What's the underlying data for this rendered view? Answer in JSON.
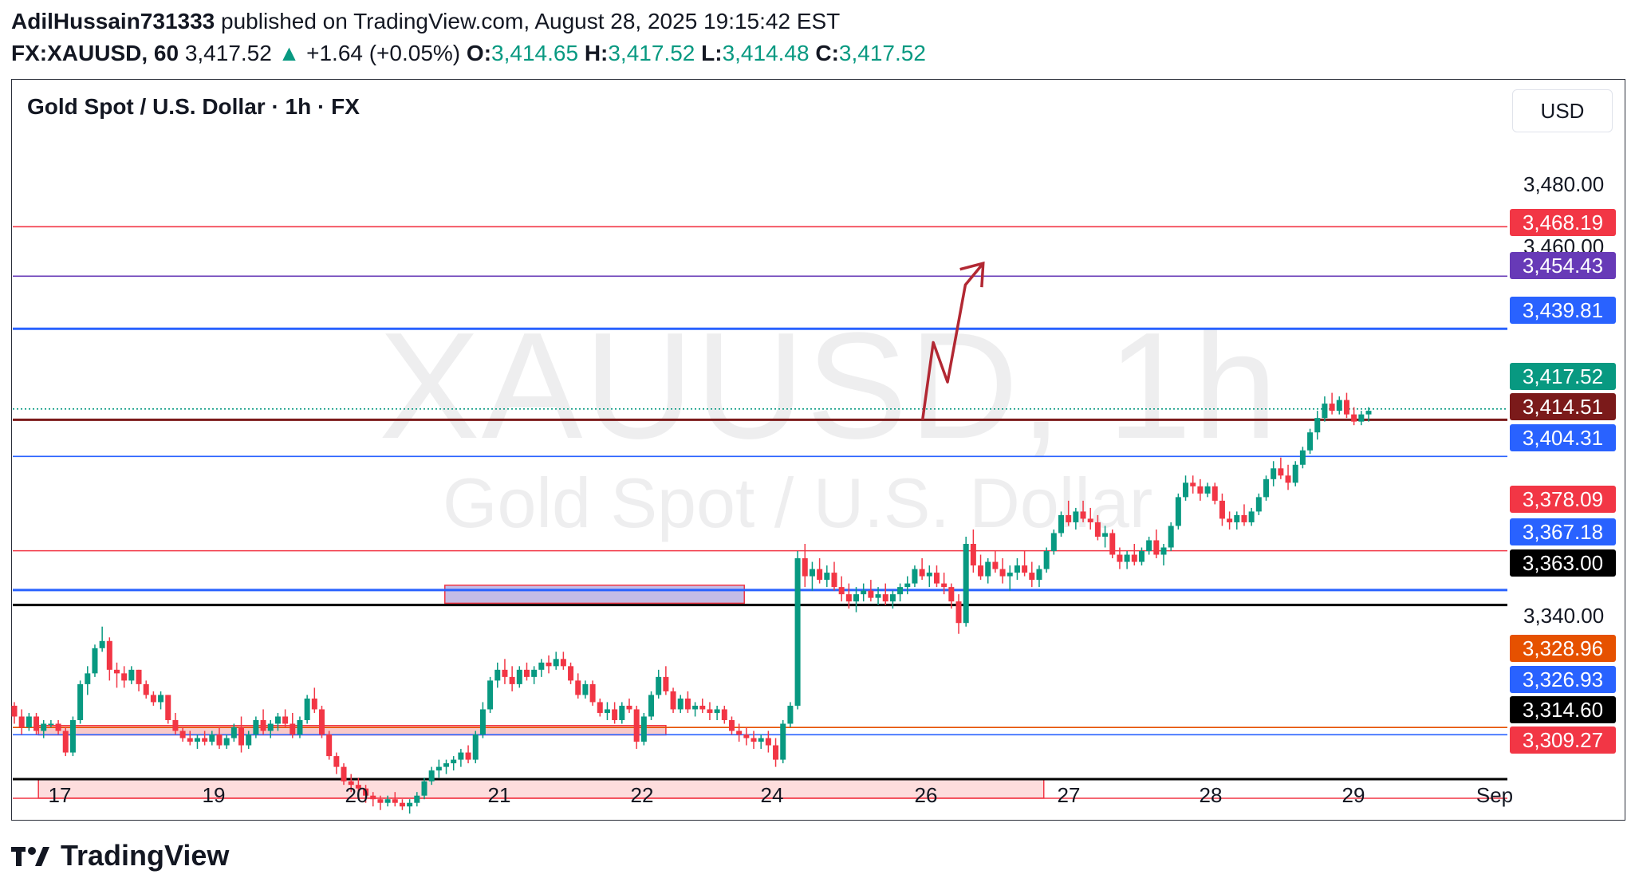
{
  "header": {
    "author": "AdilHussain731333",
    "published_text": " published on TradingView.com, August 28, 2025 19:15:42 EST",
    "symbol": "FX:XAUUSD, 60",
    "last_price": "3,417.52",
    "change_arrow": "▲",
    "change": "+1.64 (+0.05%)",
    "o_label": "O:",
    "o_value": "3,414.65",
    "h_label": "H:",
    "h_value": "3,417.52",
    "l_label": "L:",
    "l_value": "3,414.48",
    "c_label": "C:",
    "c_value": "3,417.52"
  },
  "chart_title": "Gold Spot / U.S. Dollar · 1h · FX",
  "currency_button": "USD",
  "watermark": {
    "line1": "XAUUSD, 1h",
    "line2": "Gold Spot / U.S. Dollar"
  },
  "footer": {
    "brand": "TradingView"
  },
  "colors": {
    "up": "#089981",
    "down": "#f23645",
    "red": "#f23645",
    "blue": "#2962ff",
    "purple": "#673ab7",
    "maroon": "#880e4f",
    "black": "#000000",
    "orange": "#e65100",
    "arrow": "#b22833"
  },
  "chart_data": {
    "type": "candlestick",
    "title": "Gold Spot / U.S. Dollar · 1h · FX",
    "y_ticks": [
      "3,480.00",
      "3,460.00",
      "3,340.00"
    ],
    "x_ticks": [
      "17",
      "19",
      "20",
      "21",
      "22",
      "24",
      "26",
      "27",
      "28",
      "29",
      "Sep"
    ],
    "price_levels": [
      {
        "value": 3468.19,
        "label": "3,468.19",
        "color": "#f23645"
      },
      {
        "value": 3454.43,
        "label": "3,454.43",
        "color": "#673ab7"
      },
      {
        "value": 3439.81,
        "label": "3,439.81",
        "color": "#2962ff"
      },
      {
        "value": 3417.52,
        "label": "3,417.52",
        "color": "#089981",
        "style": "dotted"
      },
      {
        "value": 3414.51,
        "label": "3,414.51",
        "color": "#7b1a1a"
      },
      {
        "value": 3404.31,
        "label": "3,404.31",
        "color": "#2962ff"
      },
      {
        "value": 3378.09,
        "label": "3,378.09",
        "color": "#f23645"
      },
      {
        "value": 3367.18,
        "label": "3,367.18",
        "color": "#2962ff"
      },
      {
        "value": 3363.0,
        "label": "3,363.00",
        "color": "#000000"
      },
      {
        "value": 3328.96,
        "label": "3,328.96",
        "color": "#e65100"
      },
      {
        "value": 3326.93,
        "label": "3,326.93",
        "color": "#2962ff"
      },
      {
        "value": 3314.6,
        "label": "3,314.60",
        "color": "#000000"
      },
      {
        "value": 3309.27,
        "label": "3,309.27",
        "color": "#f23645"
      }
    ],
    "zones": [
      {
        "from": 3363.5,
        "to": 3368.5,
        "start_day": 22.4,
        "end_day": 26.6,
        "color": "#9c8fd6"
      },
      {
        "from": 3326.9,
        "to": 3329.5,
        "start_day": 16.7,
        "end_day": 25.5,
        "color": "#f4a6a6"
      },
      {
        "from": 3309.3,
        "to": 3314.6,
        "start_day": 16.7,
        "end_day": 30.8,
        "color": "#fbc7c7"
      }
    ],
    "projection": [
      {
        "day": 29.1,
        "value": 3414.5
      },
      {
        "day": 29.25,
        "value": 3436
      },
      {
        "day": 29.45,
        "value": 3425
      },
      {
        "day": 29.7,
        "value": 3452
      },
      {
        "day": 29.95,
        "value": 3458
      }
    ],
    "candles": [
      [
        3335,
        3336,
        3330,
        3332
      ],
      [
        3332,
        3334,
        3327,
        3329
      ],
      [
        3329,
        3333,
        3328,
        3332
      ],
      [
        3332,
        3333,
        3327,
        3328
      ],
      [
        3328,
        3331,
        3326,
        3330
      ],
      [
        3330,
        3331,
        3329,
        3330
      ],
      [
        3330,
        3331,
        3327,
        3328
      ],
      [
        3328,
        3329,
        3321,
        3322
      ],
      [
        3322,
        3332,
        3321,
        3331
      ],
      [
        3331,
        3342,
        3330,
        3341
      ],
      [
        3341,
        3346,
        3338,
        3344
      ],
      [
        3344,
        3352,
        3343,
        3351
      ],
      [
        3351,
        3357,
        3350,
        3353
      ],
      [
        3353,
        3354,
        3342,
        3345
      ],
      [
        3345,
        3347,
        3340,
        3344
      ],
      [
        3344,
        3346,
        3340,
        3342
      ],
      [
        3342,
        3346,
        3341,
        3345
      ],
      [
        3345,
        3345,
        3339,
        3341
      ],
      [
        3341,
        3342,
        3337,
        3338
      ],
      [
        3338,
        3339,
        3335,
        3336
      ],
      [
        3336,
        3339,
        3334,
        3338
      ],
      [
        3338,
        3338,
        3330,
        3331
      ],
      [
        3331,
        3333,
        3327,
        3328
      ],
      [
        3328,
        3329,
        3325,
        3326
      ],
      [
        3326,
        3328,
        3324,
        3325
      ],
      [
        3325,
        3327,
        3323,
        3326
      ],
      [
        3326,
        3328,
        3324,
        3325
      ],
      [
        3325,
        3328,
        3324,
        3327
      ],
      [
        3327,
        3329,
        3323,
        3324
      ],
      [
        3324,
        3327,
        3323,
        3326
      ],
      [
        3326,
        3330,
        3325,
        3329
      ],
      [
        3329,
        3332,
        3322,
        3324
      ],
      [
        3324,
        3328,
        3323,
        3327
      ],
      [
        3327,
        3332,
        3326,
        3331
      ],
      [
        3331,
        3334,
        3327,
        3328
      ],
      [
        3328,
        3331,
        3326,
        3330
      ],
      [
        3330,
        3333,
        3328,
        3332
      ],
      [
        3332,
        3334,
        3329,
        3330
      ],
      [
        3330,
        3333,
        3326,
        3327
      ],
      [
        3327,
        3332,
        3326,
        3331
      ],
      [
        3331,
        3338,
        3330,
        3337
      ],
      [
        3337,
        3340,
        3333,
        3334
      ],
      [
        3334,
        3335,
        3326,
        3327
      ],
      [
        3327,
        3328,
        3320,
        3321
      ],
      [
        3321,
        3322,
        3316,
        3318
      ],
      [
        3318,
        3319,
        3313,
        3314
      ],
      [
        3314,
        3316,
        3311,
        3313
      ],
      [
        3313,
        3315,
        3310,
        3312
      ],
      [
        3312,
        3313,
        3308,
        3310
      ],
      [
        3310,
        3311,
        3307,
        3309
      ],
      [
        3309,
        3310,
        3306,
        3308
      ],
      [
        3308,
        3310,
        3307,
        3309
      ],
      [
        3309,
        3311,
        3307,
        3308
      ],
      [
        3308,
        3309,
        3306,
        3307
      ],
      [
        3307,
        3309,
        3305,
        3308
      ],
      [
        3308,
        3311,
        3307,
        3310
      ],
      [
        3310,
        3315,
        3309,
        3314
      ],
      [
        3314,
        3318,
        3313,
        3317
      ],
      [
        3317,
        3320,
        3315,
        3318
      ],
      [
        3318,
        3320,
        3316,
        3319
      ],
      [
        3319,
        3321,
        3317,
        3320
      ],
      [
        3320,
        3323,
        3318,
        3322
      ],
      [
        3322,
        3324,
        3319,
        3320
      ],
      [
        3320,
        3328,
        3319,
        3327
      ],
      [
        3327,
        3336,
        3326,
        3334
      ],
      [
        3334,
        3343,
        3333,
        3342
      ],
      [
        3342,
        3347,
        3340,
        3345
      ],
      [
        3345,
        3348,
        3341,
        3343
      ],
      [
        3343,
        3346,
        3339,
        3341
      ],
      [
        3341,
        3346,
        3340,
        3345
      ],
      [
        3345,
        3347,
        3342,
        3343
      ],
      [
        3343,
        3346,
        3341,
        3345
      ],
      [
        3345,
        3348,
        3343,
        3347
      ],
      [
        3347,
        3349,
        3344,
        3346
      ],
      [
        3346,
        3350,
        3345,
        3348
      ],
      [
        3348,
        3350,
        3345,
        3346
      ],
      [
        3346,
        3347,
        3341,
        3342
      ],
      [
        3342,
        3344,
        3337,
        3338
      ],
      [
        3338,
        3342,
        3337,
        3341
      ],
      [
        3341,
        3342,
        3335,
        3336
      ],
      [
        3336,
        3337,
        3332,
        3333
      ],
      [
        3333,
        3336,
        3331,
        3334
      ],
      [
        3334,
        3336,
        3330,
        3331
      ],
      [
        3331,
        3336,
        3330,
        3335
      ],
      [
        3335,
        3337,
        3333,
        3334
      ],
      [
        3334,
        3335,
        3323,
        3325
      ],
      [
        3325,
        3333,
        3324,
        3332
      ],
      [
        3332,
        3339,
        3331,
        3338
      ],
      [
        3338,
        3345,
        3337,
        3343
      ],
      [
        3343,
        3346,
        3338,
        3339
      ],
      [
        3339,
        3340,
        3333,
        3334
      ],
      [
        3334,
        3338,
        3333,
        3337
      ],
      [
        3337,
        3339,
        3333,
        3334
      ],
      [
        3334,
        3336,
        3332,
        3335
      ],
      [
        3335,
        3337,
        3333,
        3334
      ],
      [
        3334,
        3336,
        3331,
        3333
      ],
      [
        3333,
        3335,
        3331,
        3334
      ],
      [
        3334,
        3335,
        3330,
        3331
      ],
      [
        3331,
        3332,
        3327,
        3328
      ],
      [
        3328,
        3330,
        3325,
        3327
      ],
      [
        3327,
        3329,
        3324,
        3326
      ],
      [
        3326,
        3328,
        3323,
        3325
      ],
      [
        3325,
        3327,
        3323,
        3326
      ],
      [
        3326,
        3328,
        3322,
        3324
      ],
      [
        3324,
        3326,
        3318,
        3320
      ],
      [
        3320,
        3331,
        3319,
        3330
      ],
      [
        3330,
        3336,
        3329,
        3335
      ],
      [
        3335,
        3378,
        3334,
        3376
      ],
      [
        3376,
        3380,
        3368,
        3371
      ],
      [
        3371,
        3375,
        3367,
        3373
      ],
      [
        3373,
        3376,
        3369,
        3370
      ],
      [
        3370,
        3374,
        3368,
        3372
      ],
      [
        3372,
        3375,
        3367,
        3368
      ],
      [
        3368,
        3371,
        3364,
        3366
      ],
      [
        3366,
        3369,
        3362,
        3364
      ],
      [
        3364,
        3368,
        3361,
        3366
      ],
      [
        3366,
        3369,
        3364,
        3367
      ],
      [
        3367,
        3370,
        3364,
        3365
      ],
      [
        3365,
        3368,
        3363,
        3366
      ],
      [
        3366,
        3369,
        3363,
        3364
      ],
      [
        3364,
        3367,
        3362,
        3366
      ],
      [
        3366,
        3369,
        3364,
        3368
      ],
      [
        3368,
        3371,
        3366,
        3369
      ],
      [
        3369,
        3374,
        3368,
        3373
      ],
      [
        3373,
        3376,
        3370,
        3371
      ],
      [
        3371,
        3374,
        3368,
        3372
      ],
      [
        3372,
        3374,
        3368,
        3369
      ],
      [
        3369,
        3372,
        3366,
        3368
      ],
      [
        3368,
        3369,
        3362,
        3364
      ],
      [
        3364,
        3366,
        3355,
        3358
      ],
      [
        3358,
        3382,
        3357,
        3380
      ],
      [
        3380,
        3384,
        3372,
        3374
      ],
      [
        3374,
        3377,
        3370,
        3371
      ],
      [
        3371,
        3376,
        3369,
        3375
      ],
      [
        3375,
        3378,
        3372,
        3373
      ],
      [
        3373,
        3376,
        3369,
        3371
      ],
      [
        3371,
        3374,
        3367,
        3372
      ],
      [
        3372,
        3376,
        3370,
        3374
      ],
      [
        3374,
        3378,
        3371,
        3372
      ],
      [
        3372,
        3375,
        3368,
        3370
      ],
      [
        3370,
        3374,
        3368,
        3373
      ],
      [
        3373,
        3379,
        3372,
        3378
      ],
      [
        3378,
        3384,
        3377,
        3383
      ],
      [
        3383,
        3389,
        3382,
        3388
      ],
      [
        3388,
        3392,
        3385,
        3386
      ],
      [
        3386,
        3390,
        3384,
        3389
      ],
      [
        3389,
        3392,
        3386,
        3387
      ],
      [
        3387,
        3390,
        3384,
        3386
      ],
      [
        3386,
        3388,
        3381,
        3382
      ],
      [
        3382,
        3385,
        3379,
        3383
      ],
      [
        3383,
        3384,
        3376,
        3377
      ],
      [
        3377,
        3379,
        3373,
        3375
      ],
      [
        3375,
        3378,
        3373,
        3377
      ],
      [
        3377,
        3380,
        3374,
        3375
      ],
      [
        3375,
        3379,
        3374,
        3378
      ],
      [
        3378,
        3382,
        3377,
        3381
      ],
      [
        3381,
        3384,
        3376,
        3377
      ],
      [
        3377,
        3380,
        3374,
        3379
      ],
      [
        3379,
        3386,
        3378,
        3385
      ],
      [
        3385,
        3394,
        3384,
        3393
      ],
      [
        3393,
        3399,
        3392,
        3397
      ],
      [
        3397,
        3399,
        3394,
        3396
      ],
      [
        3396,
        3398,
        3392,
        3394
      ],
      [
        3394,
        3397,
        3393,
        3396
      ],
      [
        3396,
        3397,
        3391,
        3392
      ],
      [
        3392,
        3394,
        3385,
        3387
      ],
      [
        3387,
        3389,
        3384,
        3386
      ],
      [
        3386,
        3389,
        3384,
        3388
      ],
      [
        3388,
        3391,
        3385,
        3386
      ],
      [
        3386,
        3390,
        3385,
        3389
      ],
      [
        3389,
        3394,
        3388,
        3393
      ],
      [
        3393,
        3399,
        3392,
        3398
      ],
      [
        3398,
        3403,
        3396,
        3401
      ],
      [
        3401,
        3404,
        3398,
        3399
      ],
      [
        3399,
        3402,
        3395,
        3397
      ],
      [
        3397,
        3403,
        3396,
        3402
      ],
      [
        3402,
        3407,
        3401,
        3406
      ],
      [
        3406,
        3412,
        3405,
        3411
      ],
      [
        3411,
        3417,
        3409,
        3415
      ],
      [
        3415,
        3421,
        3414,
        3419
      ],
      [
        3419,
        3422,
        3416,
        3417
      ],
      [
        3417,
        3421,
        3416,
        3420
      ],
      [
        3420,
        3422,
        3415,
        3416
      ],
      [
        3416,
        3418,
        3413,
        3414
      ],
      [
        3414,
        3417,
        3413,
        3416
      ],
      [
        3416,
        3418,
        3414,
        3417
      ]
    ]
  }
}
